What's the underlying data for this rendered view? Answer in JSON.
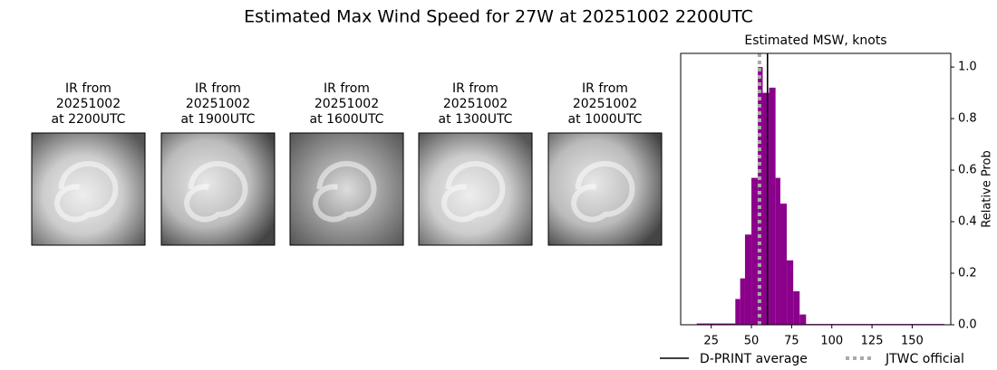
{
  "title": "Estimated Max Wind Speed for 27W at 20251002 2200UTC",
  "panels": [
    {
      "lines": [
        "IR from",
        "20251002",
        "at 2200UTC"
      ]
    },
    {
      "lines": [
        "IR from",
        "20251002",
        "at 1900UTC"
      ]
    },
    {
      "lines": [
        "IR from",
        "20251002",
        "at 1600UTC"
      ]
    },
    {
      "lines": [
        "IR from",
        "20251002",
        "at 1300UTC"
      ]
    },
    {
      "lines": [
        "IR from",
        "20251002",
        "at 1000UTC"
      ]
    }
  ],
  "chart_data": {
    "type": "histogram",
    "title": "Estimated MSW, knots",
    "y_label": "Relative Prob",
    "color": "#8b008b",
    "bins": [
      16,
      40,
      43,
      46,
      50,
      54,
      57,
      61,
      65,
      68,
      72,
      76,
      80,
      84,
      170
    ],
    "values": [
      0.005,
      0.1,
      0.18,
      0.35,
      0.57,
      1.0,
      0.9,
      0.92,
      0.57,
      0.47,
      0.25,
      0.13,
      0.04,
      0.003
    ],
    "xlim": [
      6,
      174
    ],
    "xticks": [
      25,
      50,
      75,
      100,
      125,
      150
    ],
    "ylim": [
      0,
      1.053
    ],
    "yticks": [
      {
        "value": 0,
        "label": "0.0"
      },
      {
        "value": 0.2,
        "label": "0.2"
      },
      {
        "value": 0.4,
        "label": "0.4"
      },
      {
        "value": 0.6,
        "label": "0.6"
      },
      {
        "value": 0.8,
        "label": "0.8"
      },
      {
        "value": 1.0,
        "label": "1.0"
      }
    ],
    "reference_lines": [
      {
        "name": "D-PRINT average",
        "color": "#000000",
        "value": 60,
        "style": "solid"
      },
      {
        "name": "JTWC official",
        "color": "#aaaaaa",
        "value": 55,
        "style": "dotted"
      }
    ]
  }
}
